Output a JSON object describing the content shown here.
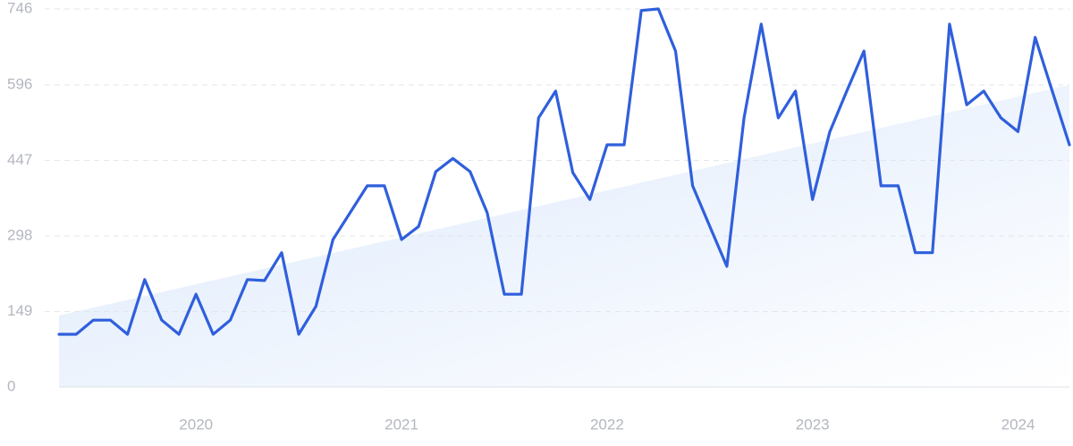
{
  "chart_data": {
    "type": "line",
    "categories": [
      null,
      null,
      null,
      null,
      null,
      null,
      null,
      null,
      "2020",
      null,
      null,
      null,
      null,
      null,
      null,
      null,
      null,
      null,
      null,
      null,
      "2021",
      null,
      null,
      null,
      null,
      null,
      null,
      null,
      null,
      null,
      null,
      null,
      "2022",
      null,
      null,
      null,
      null,
      null,
      null,
      null,
      null,
      null,
      null,
      null,
      "2023",
      null,
      null,
      null,
      null,
      null,
      null,
      null,
      null,
      null,
      null,
      null,
      "2024",
      null,
      null,
      null
    ],
    "series": [
      {
        "color": "#2f5fdc",
        "values": [
          104,
          104,
          132,
          132,
          104,
          212,
          132,
          104,
          183,
          104,
          132,
          212,
          210,
          265,
          104,
          159,
          291,
          344,
          397,
          397,
          291,
          317,
          425,
          451,
          425,
          344,
          183,
          183,
          531,
          584,
          423,
          370,
          478,
          478,
          743,
          746,
          663,
          397,
          317,
          238,
          531,
          716,
          531,
          584,
          370,
          503,
          584,
          663,
          397,
          397,
          265,
          265,
          716,
          557,
          584,
          531,
          504,
          690,
          584,
          478
        ]
      }
    ],
    "trend": {
      "color": "#dbe8fb",
      "start": 141,
      "end": 596
    },
    "ylim": [
      0,
      746
    ],
    "yticks": [
      0,
      149,
      298,
      447,
      596,
      746
    ],
    "grid": true
  }
}
